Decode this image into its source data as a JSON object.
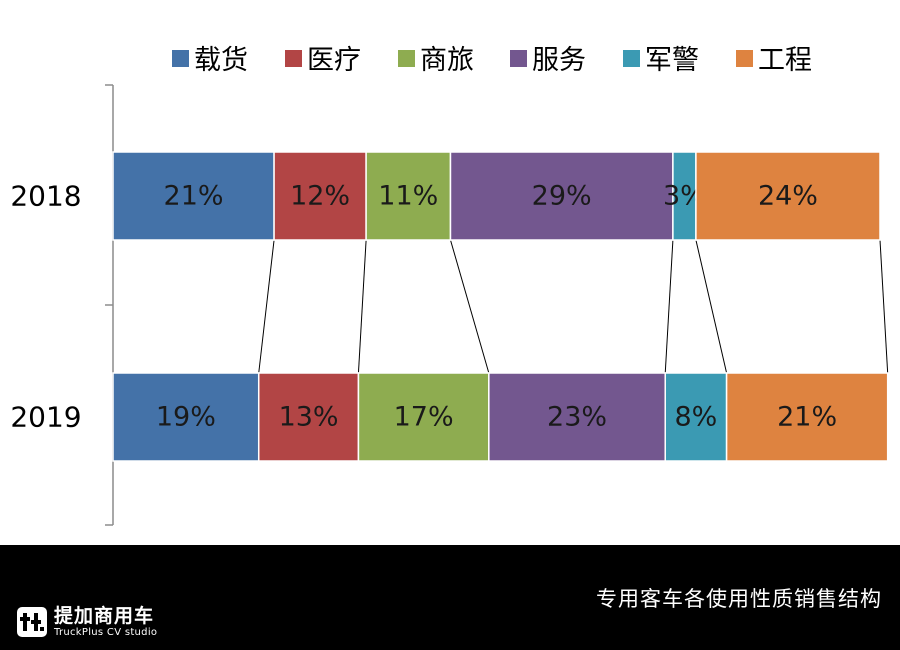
{
  "chart_data": {
    "type": "bar",
    "orientation": "horizontal",
    "stacked": true,
    "percent_stacked": true,
    "categories": [
      "2018",
      "2019"
    ],
    "series": [
      {
        "name": "载货",
        "values": [
          21,
          19
        ],
        "labels": [
          "21%",
          "19%"
        ],
        "color": "#4472A8"
      },
      {
        "name": "医疗",
        "values": [
          12,
          13
        ],
        "labels": [
          "12%",
          "13%"
        ],
        "color": "#B24545"
      },
      {
        "name": "商旅",
        "values": [
          11,
          17
        ],
        "labels": [
          "11%",
          "17%"
        ],
        "color": "#8EAC50"
      },
      {
        "name": "服务",
        "values": [
          29,
          23
        ],
        "labels": [
          "29%",
          "23%"
        ],
        "color": "#73578F"
      },
      {
        "name": "军警",
        "values": [
          3,
          8
        ],
        "labels": [
          "3%",
          "8%"
        ],
        "color": "#3B9AB3"
      },
      {
        "name": "工程",
        "values": [
          24,
          21
        ],
        "labels": [
          "24%",
          "21%"
        ],
        "color": "#DE8340"
      }
    ],
    "xlim": [
      0,
      100
    ],
    "grid": false,
    "series_lines": true,
    "legend_position": "top"
  },
  "footer": {
    "caption": "专用客车各使用性质销售结构",
    "brand_name": "提加商用车",
    "brand_subtitle": "TruckPlus CV studio"
  }
}
